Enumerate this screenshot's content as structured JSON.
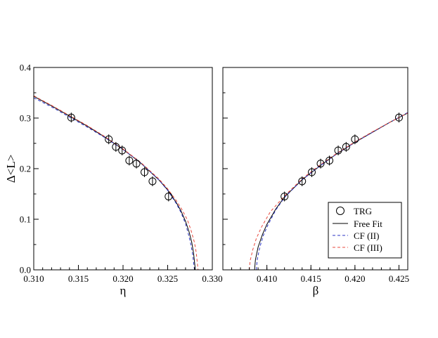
{
  "chart_data": [
    {
      "type": "line",
      "panel": "left",
      "xlabel": "η",
      "ylabel": "Δ<L>",
      "xlim": [
        0.31,
        0.33
      ],
      "ylim": [
        0.0,
        0.4
      ],
      "xticks": [
        "0.310",
        "0.315",
        "0.320",
        "0.325",
        "0.330"
      ],
      "yticks": [
        "0.0",
        "0.1",
        "0.2",
        "0.3",
        "0.4"
      ],
      "grid": false,
      "series": [
        {
          "name": "TRG",
          "kind": "markers",
          "x": [
            0.3142,
            0.3184,
            0.3192,
            0.3199,
            0.3207,
            0.3215,
            0.3224,
            0.3233,
            0.3251
          ],
          "y": [
            0.301,
            0.258,
            0.243,
            0.236,
            0.216,
            0.21,
            0.193,
            0.175,
            0.145
          ]
        },
        {
          "name": "Free Fit",
          "kind": "line",
          "color": "#000000",
          "dash": "none",
          "x": [
            0.31,
            0.312,
            0.314,
            0.316,
            0.318,
            0.32,
            0.322,
            0.324,
            0.325,
            0.326,
            0.3265,
            0.327,
            0.3274,
            0.3277,
            0.3279,
            0.3281
          ],
          "y": [
            0.343,
            0.324,
            0.304,
            0.284,
            0.262,
            0.238,
            0.211,
            0.178,
            0.158,
            0.132,
            0.116,
            0.096,
            0.075,
            0.054,
            0.033,
            0.0
          ]
        },
        {
          "name": "CF (II)",
          "kind": "line",
          "color": "#2b35c4",
          "dash": "4,3",
          "x": [
            0.31,
            0.312,
            0.314,
            0.316,
            0.318,
            0.32,
            0.322,
            0.324,
            0.325,
            0.326,
            0.3265,
            0.327,
            0.3273,
            0.3276,
            0.3278,
            0.328
          ],
          "y": [
            0.34,
            0.322,
            0.302,
            0.282,
            0.261,
            0.238,
            0.211,
            0.178,
            0.157,
            0.13,
            0.113,
            0.091,
            0.072,
            0.05,
            0.03,
            0.0
          ]
        },
        {
          "name": "CF (III)",
          "kind": "line",
          "color": "#e8483c",
          "dash": "4,3",
          "x": [
            0.31,
            0.312,
            0.314,
            0.316,
            0.318,
            0.32,
            0.322,
            0.324,
            0.325,
            0.326,
            0.3266,
            0.3272,
            0.3276,
            0.328,
            0.3282,
            0.3284
          ],
          "y": [
            0.344,
            0.325,
            0.305,
            0.285,
            0.263,
            0.239,
            0.212,
            0.18,
            0.16,
            0.136,
            0.119,
            0.099,
            0.079,
            0.054,
            0.034,
            0.0
          ]
        }
      ]
    },
    {
      "type": "line",
      "panel": "right",
      "xlabel": "β",
      "ylabel": "",
      "xlim": [
        0.405,
        0.426
      ],
      "ylim": [
        0.0,
        0.4
      ],
      "xticks": [
        "0.410",
        "0.415",
        "0.420",
        "0.425"
      ],
      "xtick_values": [
        0.41,
        0.415,
        0.42,
        0.425
      ],
      "grid": false,
      "legend": {
        "position": "bottom-right",
        "entries": [
          "TRG",
          "Free Fit",
          "CF (II)",
          "CF (III)"
        ]
      },
      "series": [
        {
          "name": "TRG",
          "kind": "markers",
          "x": [
            0.412,
            0.414,
            0.4151,
            0.4161,
            0.4171,
            0.4181,
            0.419,
            0.42,
            0.425
          ],
          "y": [
            0.145,
            0.175,
            0.193,
            0.21,
            0.216,
            0.236,
            0.243,
            0.258,
            0.301
          ]
        },
        {
          "name": "Free Fit",
          "kind": "line",
          "color": "#000000",
          "dash": "none",
          "x": [
            0.4086,
            0.4087,
            0.409,
            0.4095,
            0.41,
            0.411,
            0.412,
            0.414,
            0.416,
            0.418,
            0.42,
            0.422,
            0.424,
            0.426
          ],
          "y": [
            0.0,
            0.02,
            0.045,
            0.07,
            0.09,
            0.12,
            0.144,
            0.178,
            0.205,
            0.23,
            0.252,
            0.272,
            0.292,
            0.31
          ]
        },
        {
          "name": "CF (II)",
          "kind": "line",
          "color": "#2b35c4",
          "dash": "4,3",
          "x": [
            0.4088,
            0.4089,
            0.4092,
            0.4096,
            0.4101,
            0.411,
            0.412,
            0.414,
            0.416,
            0.418,
            0.42,
            0.422,
            0.424,
            0.426
          ],
          "y": [
            0.0,
            0.02,
            0.045,
            0.068,
            0.088,
            0.118,
            0.143,
            0.178,
            0.205,
            0.23,
            0.252,
            0.272,
            0.292,
            0.311
          ]
        },
        {
          "name": "CF (III)",
          "kind": "line",
          "color": "#e8483c",
          "dash": "4,3",
          "x": [
            0.408,
            0.4081,
            0.4084,
            0.4088,
            0.4094,
            0.4104,
            0.412,
            0.414,
            0.416,
            0.418,
            0.42,
            0.422,
            0.424,
            0.426
          ],
          "y": [
            0.0,
            0.018,
            0.04,
            0.062,
            0.085,
            0.115,
            0.146,
            0.18,
            0.207,
            0.231,
            0.253,
            0.273,
            0.292,
            0.31
          ]
        }
      ]
    }
  ]
}
